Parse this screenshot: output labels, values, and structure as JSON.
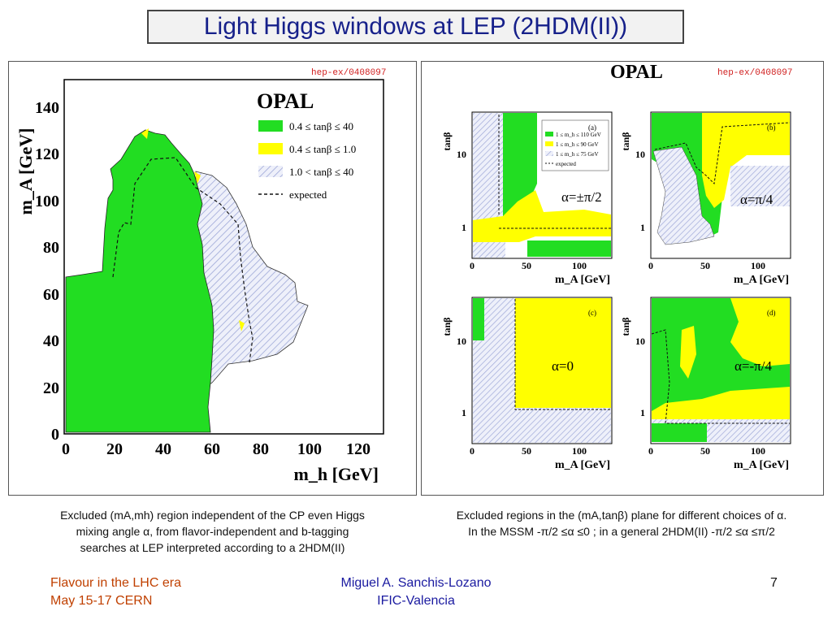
{
  "slide": {
    "title": "Light Higgs windows at LEP (2HDM(II))",
    "tag_left": "hep-ex/0408097",
    "tag_right": "hep-ex/0408097",
    "caption_left": [
      "Excluded (mA,mh)  region independent of the CP even Higgs",
      "mixing angle α, from flavor-independent and b-tagging",
      "searches at LEP interpreted according to a 2HDM(II)"
    ],
    "caption_right": [
      "Excluded regions in the (mA,tanβ) plane for different choices of α.",
      "In the MSSM  -π/2 ≤α ≤0 ; in a  general 2HDM(II) -π/2 ≤α ≤π/2"
    ],
    "footer_left": [
      "Flavour in the LHC era",
      "May 15-17 CERN"
    ],
    "footer_center": [
      "Miguel A. Sanchis-Lozano",
      "IFIC-Valencia"
    ],
    "page_number": "7",
    "colors": {
      "title": "#16208a",
      "footer_left": "#c04000",
      "footer_center": "#1a1aa0",
      "green": "#22dd22",
      "yellow": "#ffff00",
      "hatch": "#9ea8d8",
      "tag": "#d02020"
    }
  },
  "left_plot": {
    "brand": "OPAL",
    "xlabel": "m_h [GeV]",
    "ylabel": "m_A [GeV]",
    "xticks": [
      "0",
      "20",
      "40",
      "60",
      "80",
      "100",
      "120"
    ],
    "yticks": [
      "0",
      "20",
      "40",
      "60",
      "80",
      "100",
      "120",
      "140"
    ],
    "legend": [
      "0.4 ≤ tanβ ≤  40",
      "0.4 ≤ tanβ ≤  1.0",
      "1.0 < tanβ ≤  40",
      "expected"
    ]
  },
  "right_plots": {
    "brand": "OPAL",
    "xlabel": "m_A [GeV]",
    "ylabel": "tanβ",
    "xticks": [
      "0",
      "50",
      "100"
    ],
    "yticks": [
      "1",
      "10"
    ],
    "legend": [
      "1 ≤ m_h ≤ 110 GeV",
      "1 ≤ m_h ≤ 90 GeV",
      "1 ≤ m_h ≤ 75 GeV",
      "expected"
    ],
    "panels": [
      {
        "label": "(a)",
        "alpha": "α=±π/2"
      },
      {
        "label": "(b)",
        "alpha": "α=π/4"
      },
      {
        "label": "(c)",
        "alpha": "α=0"
      },
      {
        "label": "(d)",
        "alpha": "α=-π/4"
      }
    ]
  }
}
